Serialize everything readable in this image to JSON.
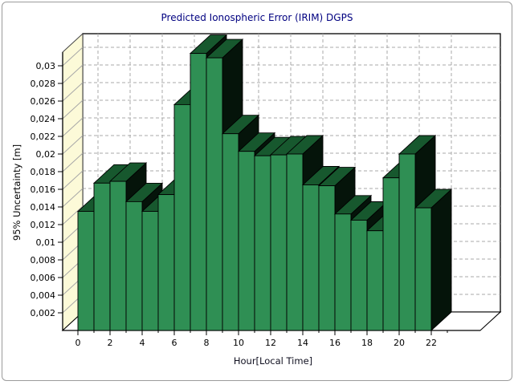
{
  "panel": {
    "background": "#ffffff",
    "border_color": "#9b9b9b"
  },
  "chart_data": {
    "type": "bar",
    "style": "3d-column",
    "title": "Predicted Ionospheric Error (IRIM) DGPS",
    "xlabel": "Hour[Local Time]",
    "ylabel": "95% Uncertainty [m]",
    "categories": [
      0,
      1,
      2,
      3,
      4,
      5,
      6,
      7,
      8,
      9,
      10,
      11,
      12,
      13,
      14,
      15,
      16,
      17,
      18,
      19,
      20,
      21
    ],
    "values": [
      0.0135,
      0.0167,
      0.0169,
      0.0146,
      0.0135,
      0.0154,
      0.0256,
      0.0314,
      0.0309,
      0.0223,
      0.0203,
      0.0198,
      0.0199,
      0.02,
      0.0165,
      0.0164,
      0.0132,
      0.0125,
      0.0113,
      0.0173,
      0.02,
      0.0139
    ],
    "x_axis": {
      "major_tick_hours": [
        0,
        2,
        4,
        6,
        8,
        10,
        12,
        14,
        16,
        18,
        20,
        22
      ],
      "tick_labels": [
        "0",
        "2",
        "4",
        "6",
        "8",
        "10",
        "12",
        "14",
        "16",
        "18",
        "20",
        "22"
      ],
      "minor_tick_hours": [
        1,
        3,
        5,
        7,
        9,
        11,
        13,
        15,
        17,
        19,
        21,
        23
      ]
    },
    "y_axis": {
      "ticks": [
        0.002,
        0.004,
        0.006,
        0.008,
        0.01,
        0.012,
        0.014,
        0.016,
        0.018,
        0.02,
        0.022,
        0.024,
        0.026,
        0.028,
        0.03
      ],
      "tick_labels": [
        "0,002",
        "0,004",
        "0,006",
        "0,008",
        "0,01",
        "0,012",
        "0,014",
        "0,016",
        "0,018",
        "0,02",
        "0,022",
        "0,024",
        "0,026",
        "0,028",
        "0,03"
      ],
      "min": 0,
      "max": 0.0316,
      "decimal_separator": ","
    },
    "grid": {
      "horizontal": "dashed",
      "vertical": "dashed",
      "color": "#a8a8a8",
      "on": true
    },
    "legend": "none",
    "colors": {
      "bar_front": "#2f8f54",
      "bar_top": "#17582e",
      "bar_side": "#05140a",
      "bar_outline": "#000000",
      "wall_fill": "#fcfad8",
      "wall_hatch": "#a8a8a8",
      "axis": "#000000",
      "title": "#000080",
      "tick_text": "#000000"
    }
  }
}
